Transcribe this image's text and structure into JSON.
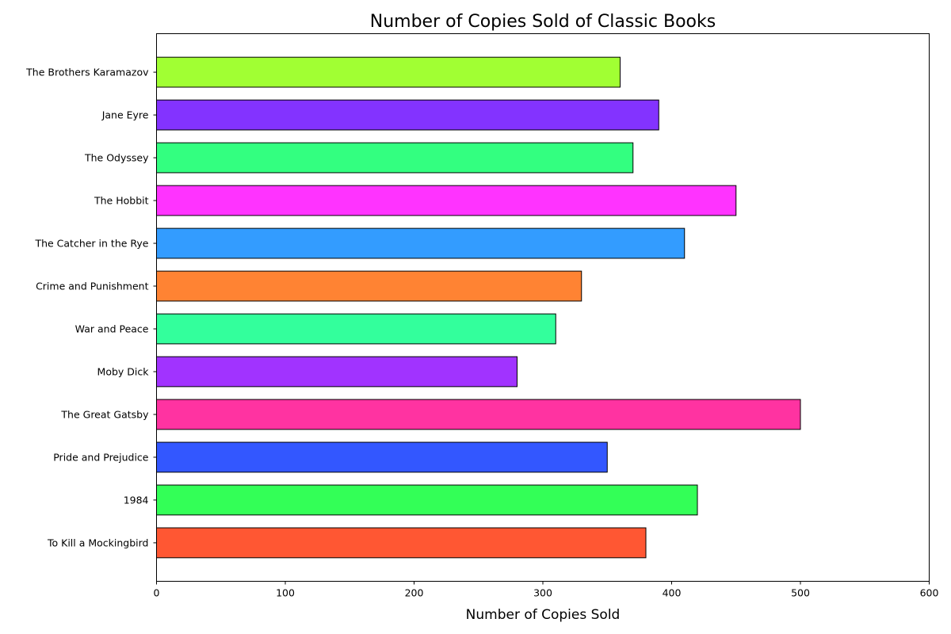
{
  "chart_data": {
    "type": "bar",
    "orientation": "horizontal",
    "title": "Number of Copies Sold of Classic Books",
    "xlabel": "Number of Copies Sold",
    "ylabel": "",
    "xlim": [
      0,
      600
    ],
    "xticks": [
      0,
      100,
      200,
      300,
      400,
      500,
      600
    ],
    "grid": false,
    "legend": "none",
    "categories": [
      "To Kill a Mockingbird",
      "1984",
      "Pride and Prejudice",
      "The Great Gatsby",
      "Moby Dick",
      "War and Peace",
      "Crime and Punishment",
      "The Catcher in the Rye",
      "The Hobbit",
      "The Odyssey",
      "Jane Eyre",
      "The Brothers Karamazov"
    ],
    "values": [
      380,
      420,
      350,
      500,
      280,
      310,
      330,
      410,
      450,
      370,
      390,
      360
    ],
    "colors": [
      "#ff5733",
      "#33ff57",
      "#3357ff",
      "#ff33a1",
      "#a133ff",
      "#33ff9c",
      "#ff8333",
      "#339cff",
      "#ff33ff",
      "#33ff80",
      "#8333ff",
      "#a1ff33"
    ],
    "edgecolor": "#000000"
  }
}
